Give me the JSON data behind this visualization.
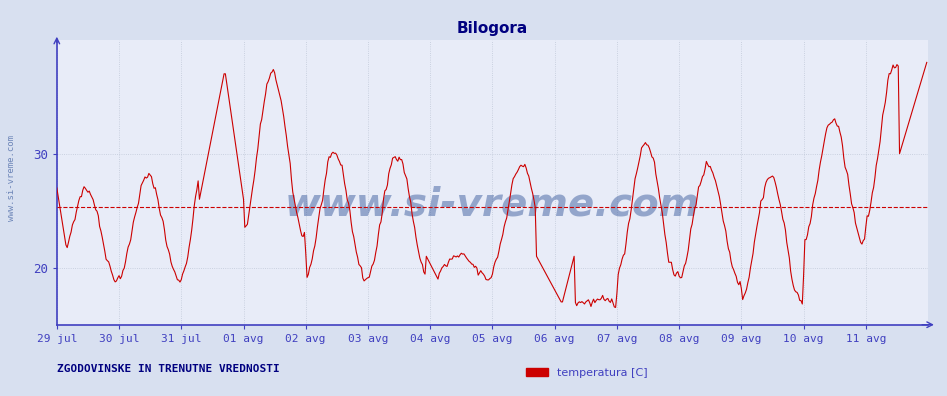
{
  "title": "Bilogora",
  "title_color": "#000080",
  "title_fontsize": 11,
  "ylabel_side_text": "www.si-vreme.com",
  "background_color": "#d8e0f0",
  "plot_bg_color": "#e8ecf8",
  "line_color": "#cc0000",
  "avg_line_color": "#cc0000",
  "avg_line_value": 25.3,
  "grid_color": "#c0c8d8",
  "axis_color": "#4040c0",
  "tick_color": "#4040c0",
  "tick_fontsize": 8,
  "xlim": [
    0,
    672
  ],
  "ylim": [
    15,
    40
  ],
  "yticks": [
    20,
    30
  ],
  "x_tick_labels": [
    "29 jul",
    "30 jul",
    "31 jul",
    "01 avg",
    "02 avg",
    "03 avg",
    "04 avg",
    "05 avg",
    "06 avg",
    "07 avg",
    "08 avg",
    "09 avg",
    "10 avg",
    "11 avg"
  ],
  "x_tick_positions": [
    0,
    48,
    96,
    144,
    192,
    240,
    288,
    336,
    384,
    432,
    480,
    528,
    576,
    624
  ],
  "legend_label": "temperatura [C]",
  "legend_color": "#cc0000",
  "footer_text": "ZGODOVINSKE IN TRENUTNE VREDNOSTI",
  "footer_color": "#000080",
  "footer_fontsize": 8,
  "watermark_text": "www.si-vreme.com",
  "watermark_color": "#4060a0",
  "watermark_alpha": 0.5,
  "watermark_fontsize": 28
}
